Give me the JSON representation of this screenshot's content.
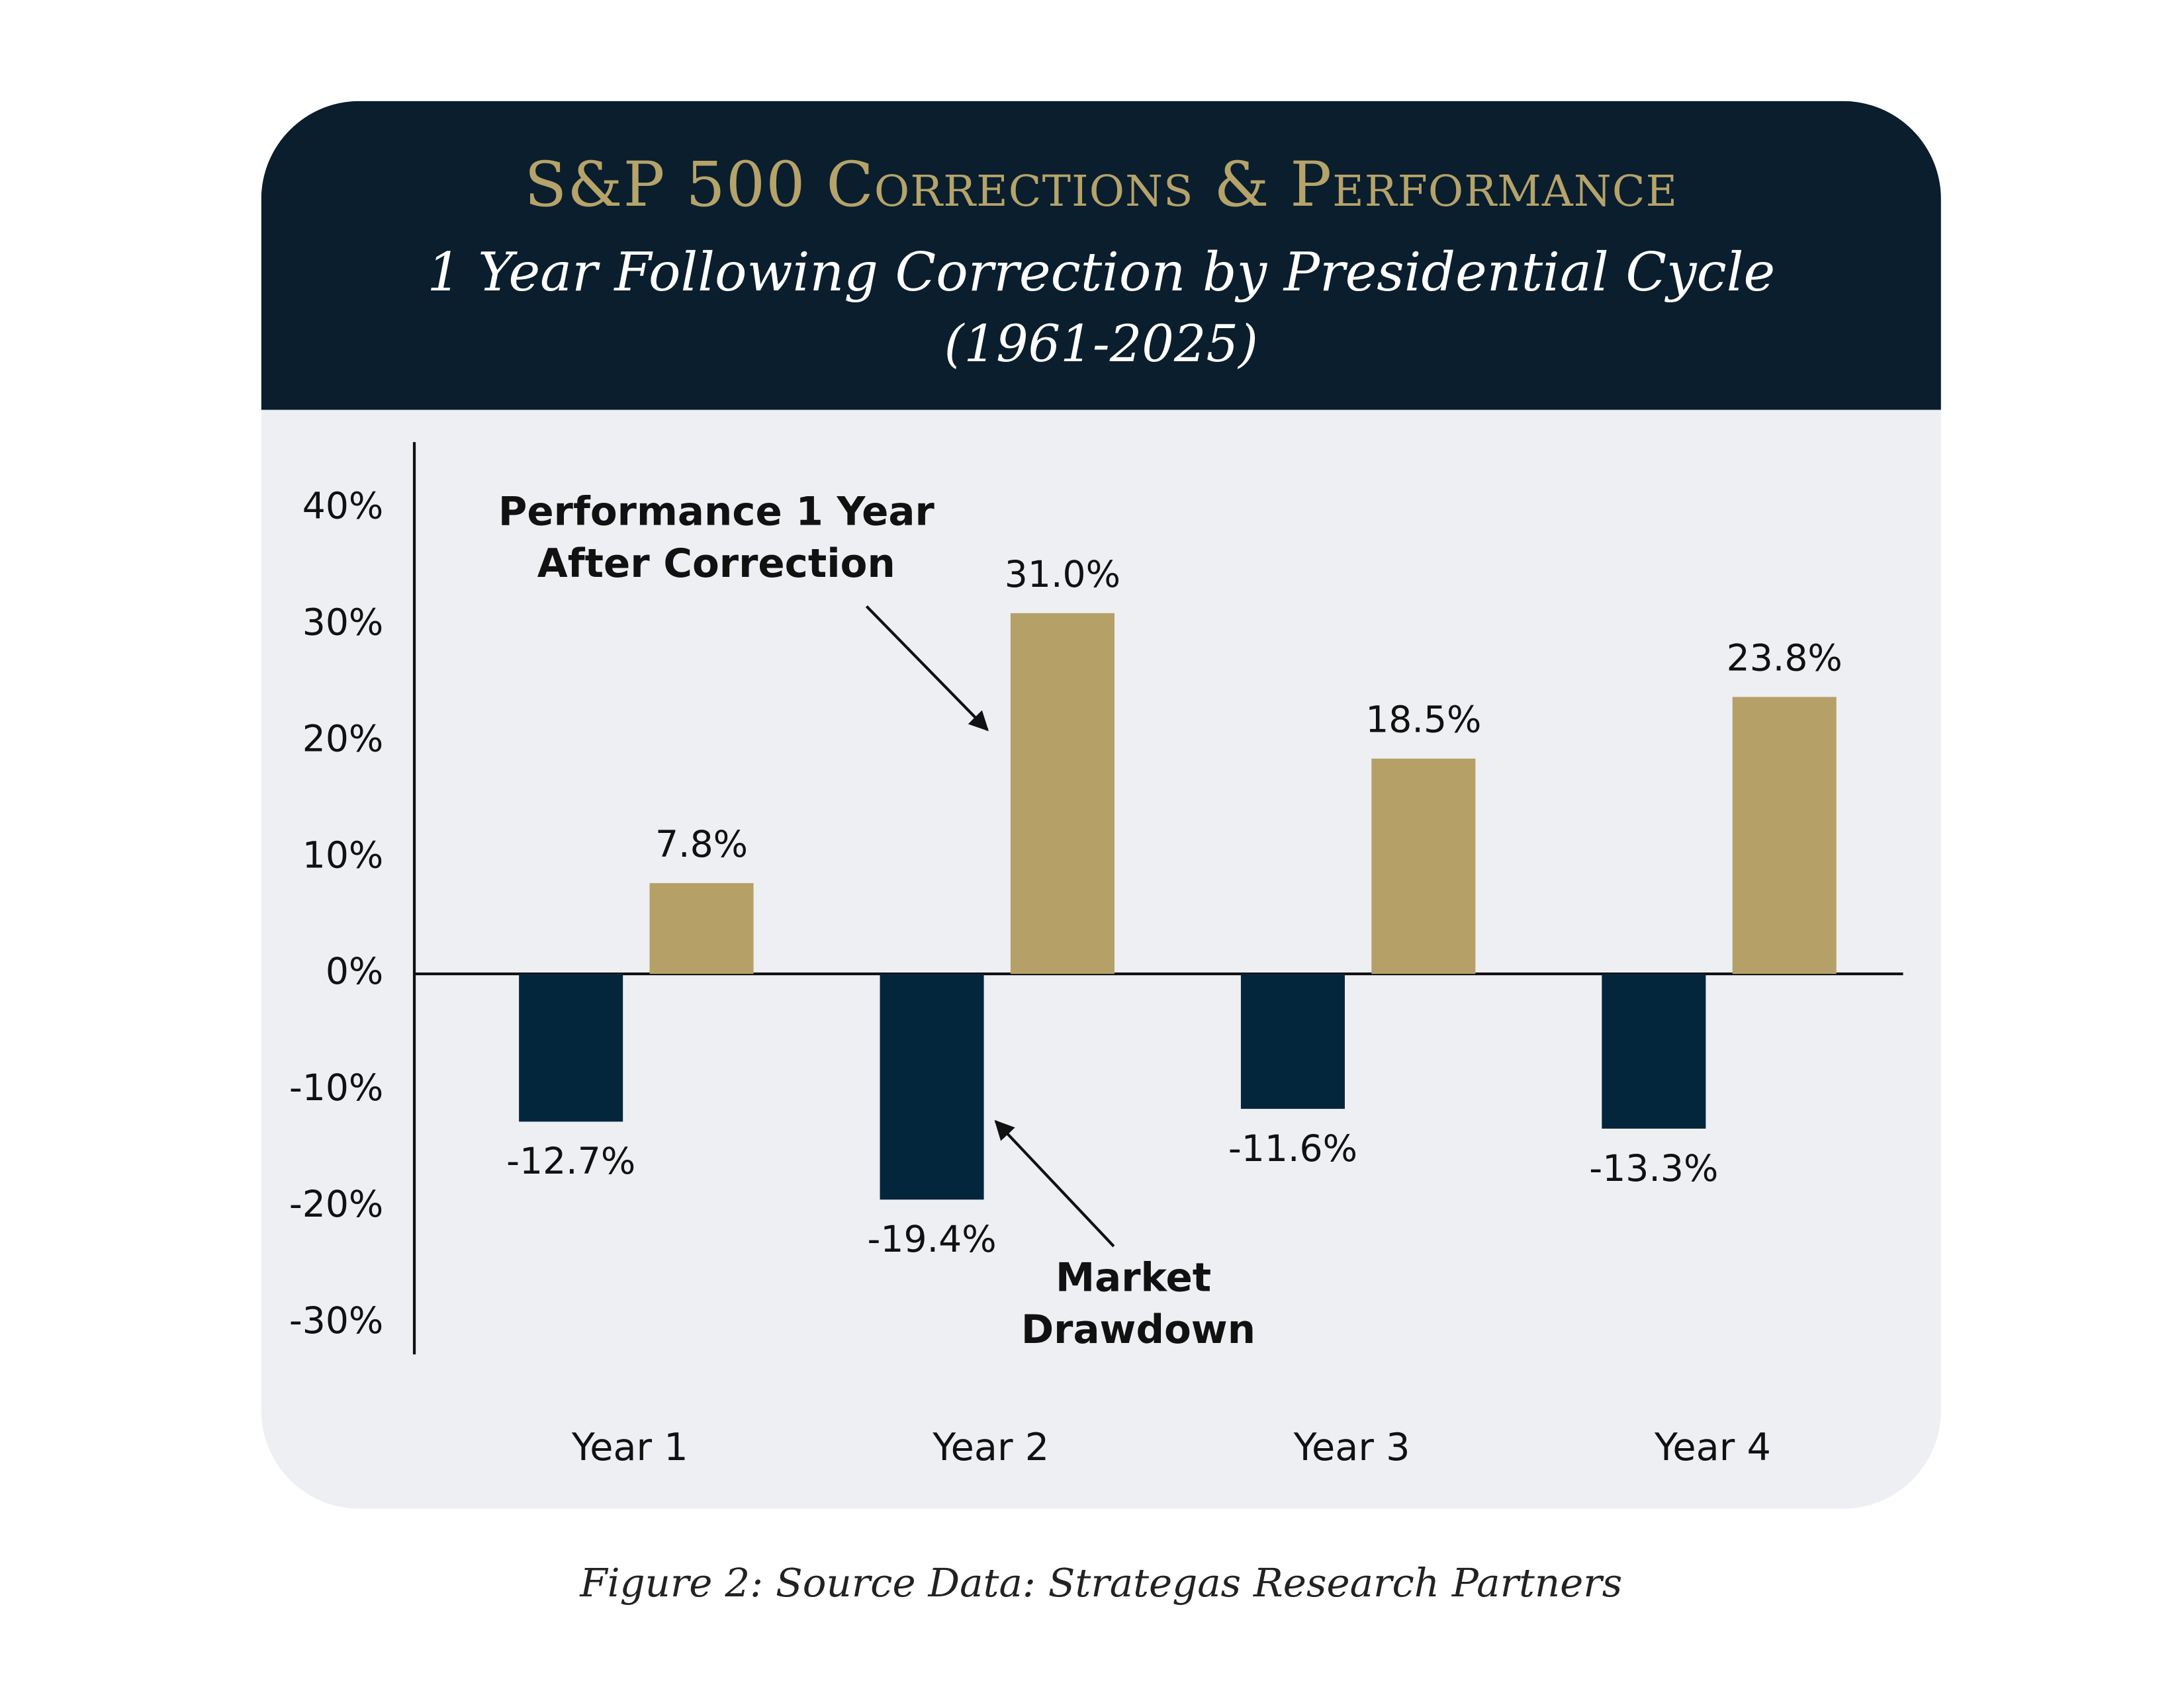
{
  "chart_data": {
    "type": "bar",
    "title": "S&P 500 Corrections & Performance",
    "subtitle": "1 Year Following Correction by Presidential Cycle",
    "period": "(1961-2025)",
    "caption": "Figure 2: Source Data: Strategas Research Partners",
    "categories": [
      "Year 1",
      "Year 2",
      "Year 3",
      "Year 4"
    ],
    "series": [
      {
        "name": "Market Drawdown",
        "color": "#03263c",
        "values": [
          -12.7,
          -19.4,
          -11.6,
          -13.3
        ],
        "value_labels": [
          "-12.7%",
          "-19.4%",
          "-11.6%",
          "-13.3%"
        ]
      },
      {
        "name": "Performance 1 Year After Correction",
        "color": "#b5a167",
        "values": [
          7.8,
          31.0,
          18.5,
          23.8
        ],
        "value_labels": [
          "7.8%",
          "31.0%",
          "18.5%",
          "23.8%"
        ]
      }
    ],
    "ylim": [
      -32.7,
      45.7
    ],
    "yticks": [
      {
        "value": -30,
        "label": "-30%"
      },
      {
        "value": -20,
        "label": "-20%"
      },
      {
        "value": -10,
        "label": "-10%"
      },
      {
        "value": 0,
        "label": "0%"
      },
      {
        "value": 10,
        "label": "10%"
      },
      {
        "value": 20,
        "label": "20%"
      },
      {
        "value": 30,
        "label": "30%"
      },
      {
        "value": 40,
        "label": "40%"
      }
    ],
    "grid": false
  }
}
